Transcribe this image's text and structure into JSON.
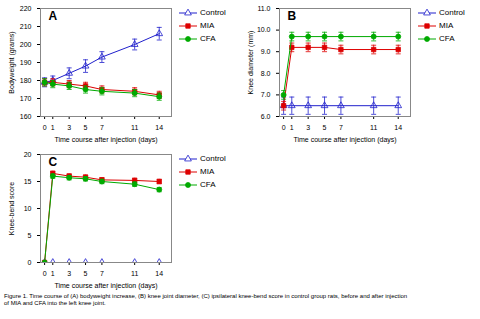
{
  "chart_data": [
    {
      "type": "line",
      "title": "A",
      "x_label": "Time course after injection (days)",
      "y_label": "Bodyweight (grams)",
      "x": [
        0,
        1,
        3,
        5,
        7,
        11,
        14
      ],
      "xlim": [
        -0.5,
        15.5
      ],
      "xticks": [
        0,
        1,
        3,
        5,
        7,
        11,
        14
      ],
      "ylim": [
        160,
        220
      ],
      "yticks": [
        160,
        170,
        180,
        190,
        200,
        210,
        220
      ],
      "legend": "right",
      "series": [
        {
          "name": "Control",
          "color": "#2020CC",
          "marker": "triangle-open",
          "values": [
            179,
            180,
            184,
            188,
            193,
            200,
            206
          ],
          "errors": [
            2.5,
            2.5,
            3.0,
            3.5,
            3.0,
            3.0,
            3.5
          ]
        },
        {
          "name": "MIA",
          "color": "#DD0000",
          "marker": "square",
          "values": [
            179,
            179,
            178,
            177,
            175,
            174,
            172
          ],
          "errors": [
            2.0,
            2.0,
            2.0,
            2.0,
            2.0,
            2.0,
            2.0
          ]
        },
        {
          "name": "CFA",
          "color": "#00AA00",
          "marker": "circle",
          "values": [
            179,
            178,
            177,
            175,
            174,
            173,
            171
          ],
          "errors": [
            2.0,
            2.0,
            2.0,
            2.0,
            2.0,
            2.0,
            2.0
          ]
        }
      ]
    },
    {
      "type": "line",
      "title": "B",
      "x_label": "Time course after injection (days)",
      "y_label": "Knee diameter (mm)",
      "x": [
        0,
        1,
        3,
        5,
        7,
        11,
        14
      ],
      "xlim": [
        -0.5,
        15.5
      ],
      "xticks": [
        0,
        1,
        3,
        5,
        7,
        11,
        14
      ],
      "ylim": [
        6,
        11
      ],
      "yticks": [
        6,
        7,
        8,
        9,
        10,
        11
      ],
      "legend": "right",
      "series": [
        {
          "name": "Control",
          "color": "#2020CC",
          "marker": "triangle-open",
          "values": [
            6.5,
            6.5,
            6.5,
            6.5,
            6.5,
            6.5,
            6.5
          ],
          "errors": [
            0.4,
            0.4,
            0.4,
            0.4,
            0.4,
            0.4,
            0.4
          ]
        },
        {
          "name": "MIA",
          "color": "#DD0000",
          "marker": "square",
          "values": [
            6.5,
            9.2,
            9.2,
            9.2,
            9.1,
            9.1,
            9.1
          ],
          "errors": [
            0.2,
            0.2,
            0.2,
            0.2,
            0.2,
            0.2,
            0.2
          ]
        },
        {
          "name": "CFA",
          "color": "#00AA00",
          "marker": "circle",
          "values": [
            7.0,
            9.7,
            9.7,
            9.7,
            9.7,
            9.7,
            9.7
          ],
          "errors": [
            0.2,
            0.2,
            0.2,
            0.2,
            0.2,
            0.2,
            0.2
          ]
        }
      ]
    },
    {
      "type": "line",
      "title": "C",
      "x_label": "Time course after injection (days)",
      "y_label": "Knee-bend score",
      "x": [
        0,
        1,
        3,
        5,
        7,
        11,
        14
      ],
      "xlim": [
        -0.5,
        15.5
      ],
      "xticks": [
        0,
        1,
        3,
        5,
        7,
        11,
        14
      ],
      "ylim": [
        0,
        20
      ],
      "yticks": [
        0,
        5,
        10,
        15,
        20
      ],
      "legend": "right",
      "series": [
        {
          "name": "Control",
          "color": "#2020CC",
          "marker": "triangle-open",
          "values": [
            0,
            0,
            0,
            0,
            0,
            0,
            0
          ],
          "errors": [
            0,
            0,
            0,
            0,
            0,
            0,
            0
          ]
        },
        {
          "name": "MIA",
          "color": "#DD0000",
          "marker": "square",
          "values": [
            0,
            16.5,
            16.0,
            15.8,
            15.3,
            15.2,
            15.0
          ],
          "errors": [
            0,
            0.4,
            0.4,
            0.4,
            0.4,
            0.4,
            0.4
          ]
        },
        {
          "name": "CFA",
          "color": "#00AA00",
          "marker": "circle",
          "values": [
            0,
            16.0,
            15.7,
            15.5,
            15.0,
            14.5,
            13.5
          ],
          "errors": [
            0,
            0.4,
            0.4,
            0.4,
            0.4,
            0.4,
            0.4
          ]
        }
      ],
      "annotations": [
        "Figure 1. Time course of (A) bodyweight increase, (B) knee joint diameter, (C) ipsilateral knee-bend score in control group rats, before and after injection\nof MIA and CFA into the left knee joint."
      ]
    }
  ]
}
